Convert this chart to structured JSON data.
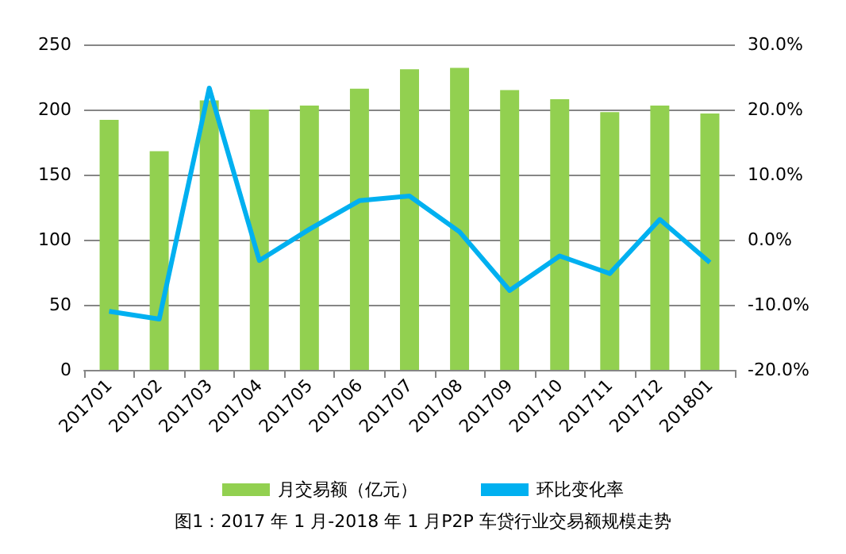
{
  "chart_data": {
    "type": "bar",
    "categories": [
      "201701",
      "201702",
      "201703",
      "201704",
      "201705",
      "201706",
      "201707",
      "201708",
      "201709",
      "201710",
      "201711",
      "201712",
      "201801"
    ],
    "series": [
      {
        "name": "月交易额（亿元）",
        "color": "#92d050",
        "values": [
          192,
          168,
          207,
          200,
          203,
          216,
          231,
          232,
          215,
          208,
          198,
          203,
          197
        ]
      },
      {
        "name": "环比变化率",
        "type": "line",
        "axis": "y2",
        "color": "#00b0f0",
        "values": [
          -11.0,
          -12.2,
          23.3,
          -3.2,
          1.6,
          6.0,
          6.7,
          1.2,
          -7.8,
          -2.5,
          -5.2,
          3.1,
          -3.5
        ]
      }
    ],
    "ylim": [
      0,
      250
    ],
    "yticks": [
      0,
      50,
      100,
      150,
      200,
      250
    ],
    "y2lim": [
      -20,
      30
    ],
    "y2ticks": [
      {
        "value": -20,
        "label": "-20.0%"
      },
      {
        "value": -10,
        "label": "-10.0%"
      },
      {
        "value": 0,
        "label": "0.0%"
      },
      {
        "value": 10,
        "label": "10.0%"
      },
      {
        "value": 20,
        "label": "20.0%"
      },
      {
        "value": 30,
        "label": "30.0%"
      }
    ],
    "grid": "y",
    "legend": "bottom",
    "marker": "none",
    "line_style": "solid",
    "annotations": [
      "图1：2017 年 1 月-2018 年 1 月P2P 车贷行业交易额规模走势"
    ]
  }
}
